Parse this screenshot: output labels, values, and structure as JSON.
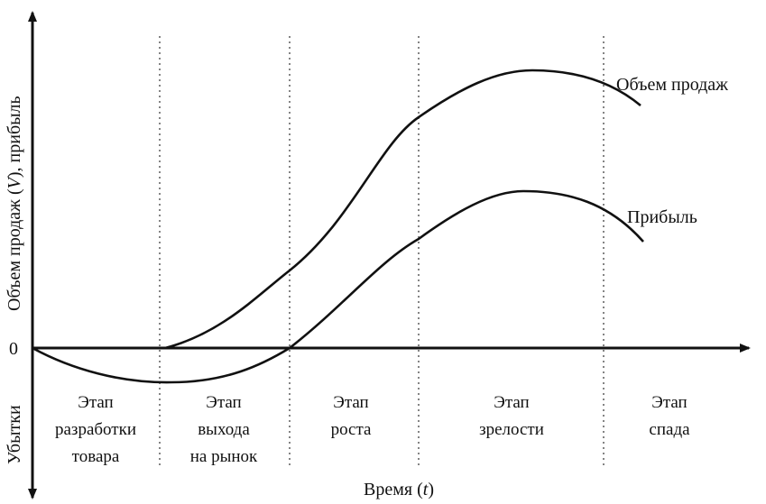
{
  "axes": {
    "y_label": "Объем продаж (V), прибыль",
    "y_label_prefix": "Объем продаж (",
    "y_label_var": "V",
    "y_label_suffix": "), прибыль",
    "loss_label": "Убытки",
    "zero_label": "0",
    "x_label_prefix": "Время (",
    "x_label_var": "t",
    "x_label_suffix": ")"
  },
  "curves": {
    "sales": {
      "label": "Объем продаж"
    },
    "profit": {
      "label": "Прибыль"
    }
  },
  "stages": [
    {
      "line1": "Этап",
      "line2": "разработки",
      "line3": "товара"
    },
    {
      "line1": "Этап",
      "line2": "выхода",
      "line3": "на рынок"
    },
    {
      "line1": "Этап",
      "line2": "роста",
      "line3": ""
    },
    {
      "line1": "Этап",
      "line2": "зрелости",
      "line3": ""
    },
    {
      "line1": "Этап",
      "line2": "спада",
      "line3": ""
    }
  ],
  "colors": {
    "ink": "#111111",
    "background": "#ffffff"
  }
}
